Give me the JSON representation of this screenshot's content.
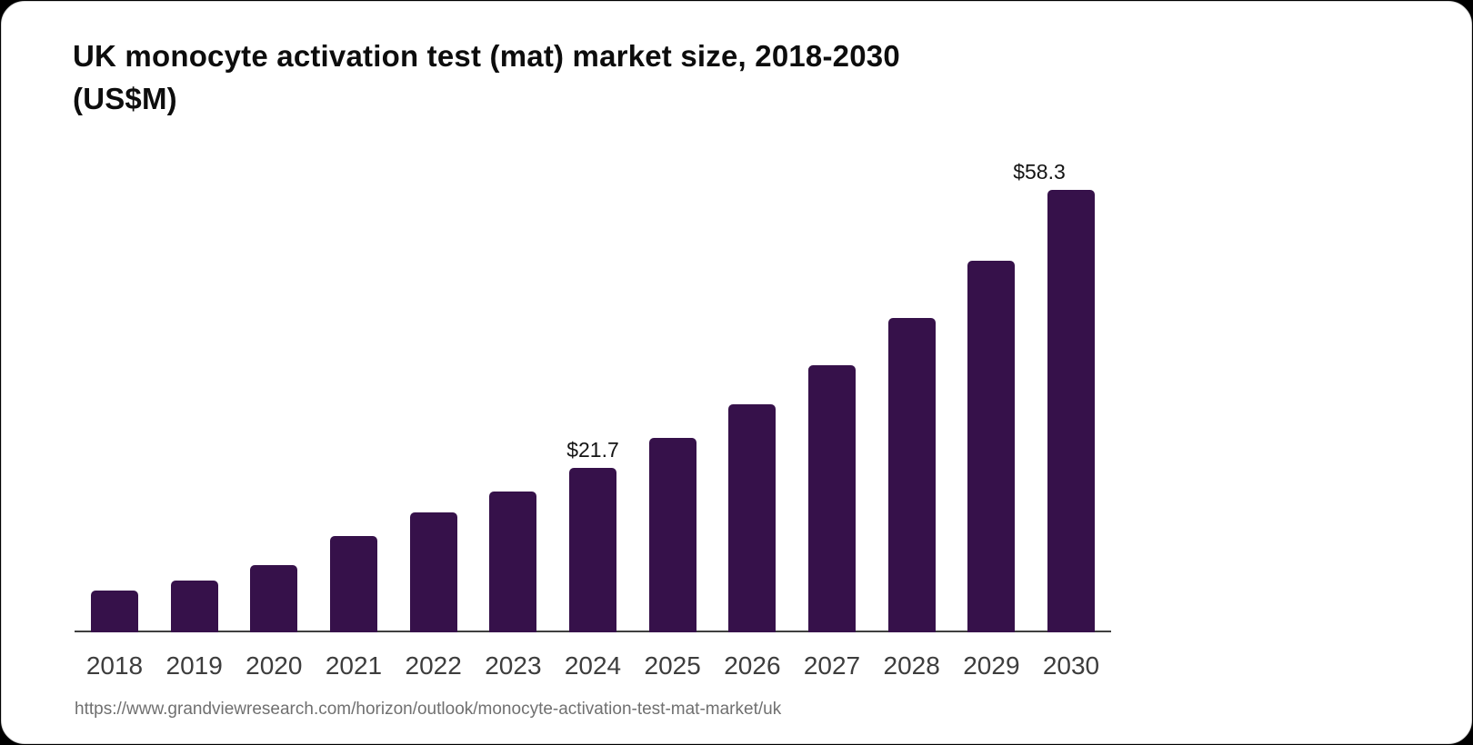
{
  "header": {
    "title_line1": "UK monocyte activation test (mat) market size, 2018-2030",
    "title_line2": "(US$M)"
  },
  "chart_data": {
    "type": "bar",
    "title": "UK monocyte activation test (mat) market size, 2018-2030 (US$M)",
    "categories": [
      "2018",
      "2019",
      "2020",
      "2021",
      "2022",
      "2023",
      "2024",
      "2025",
      "2026",
      "2027",
      "2028",
      "2029",
      "2030"
    ],
    "values": [
      5.5,
      6.8,
      8.9,
      12.7,
      15.8,
      18.6,
      21.7,
      25.6,
      30.1,
      35.2,
      41.4,
      49.0,
      58.3
    ],
    "value_labels": [
      {
        "category": "2024",
        "text": "$21.7",
        "offset_x": 0
      },
      {
        "category": "2030",
        "text": "$58.3",
        "offset_x": -35
      }
    ],
    "xlabel": "",
    "ylabel": "",
    "ylim": [
      0,
      60
    ],
    "y_axis_visible": false,
    "grid": false,
    "legend": "none",
    "bar_color": "#36114A",
    "axis_color": "#3f3f3f",
    "tick_label_color": "#3d3d3d",
    "value_label_color": "#141414"
  },
  "footer": {
    "source_url": "https://www.grandviewresearch.com/horizon/outlook/monocyte-activation-test-mat-market/uk"
  }
}
